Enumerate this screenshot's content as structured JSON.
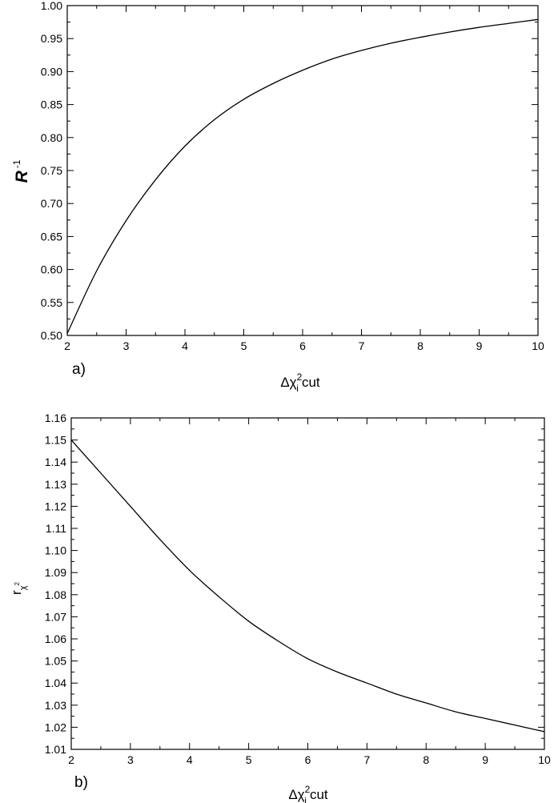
{
  "chart_data": [
    {
      "type": "line",
      "panel_label": "a)",
      "xlabel": {
        "main": "Δχ",
        "sup": "2",
        "sub": "i",
        "suffix": "cut"
      },
      "ylabel": {
        "main": "R",
        "sup": "-1"
      },
      "xlim": [
        2,
        10
      ],
      "ylim": [
        0.5,
        1.0
      ],
      "xticks": [
        2,
        3,
        4,
        5,
        6,
        7,
        8,
        9,
        10
      ],
      "xtick_labels": [
        "2",
        "3",
        "4",
        "5",
        "6",
        "7",
        "8",
        "9",
        "10"
      ],
      "yticks": [
        0.5,
        0.55,
        0.6,
        0.65,
        0.7,
        0.75,
        0.8,
        0.85,
        0.9,
        0.95,
        1.0
      ],
      "ytick_labels": [
        "0.50",
        "0.55",
        "0.60",
        "0.65",
        "0.70",
        "0.75",
        "0.80",
        "0.85",
        "0.90",
        "0.95",
        "1.00"
      ],
      "grid": false,
      "series": [
        {
          "x": [
            2,
            2.5,
            3,
            3.5,
            4,
            4.5,
            5,
            5.5,
            6,
            6.5,
            7,
            7.5,
            8,
            8.5,
            9,
            9.5,
            10
          ],
          "y": [
            0.503,
            0.598,
            0.674,
            0.736,
            0.787,
            0.827,
            0.858,
            0.882,
            0.902,
            0.919,
            0.932,
            0.943,
            0.952,
            0.96,
            0.967,
            0.973,
            0.979
          ]
        }
      ]
    },
    {
      "type": "line",
      "panel_label": "b)",
      "xlabel": {
        "main": "Δχ",
        "sup": "2",
        "sub": "i",
        "suffix": "cut"
      },
      "ylabel": {
        "main": "r",
        "sub": "χ",
        "subsup": "2"
      },
      "xlim": [
        2,
        10
      ],
      "ylim": [
        1.01,
        1.16
      ],
      "xticks": [
        2,
        3,
        4,
        5,
        6,
        7,
        8,
        9,
        10
      ],
      "xtick_labels": [
        "2",
        "3",
        "4",
        "5",
        "6",
        "7",
        "8",
        "9",
        "10"
      ],
      "yticks": [
        1.01,
        1.02,
        1.03,
        1.04,
        1.05,
        1.06,
        1.07,
        1.08,
        1.09,
        1.1,
        1.11,
        1.12,
        1.13,
        1.14,
        1.15,
        1.16
      ],
      "ytick_labels": [
        "1.01",
        "1.02",
        "1.03",
        "1.04",
        "1.05",
        "1.06",
        "1.07",
        "1.08",
        "1.09",
        "1.10",
        "1.11",
        "1.12",
        "1.13",
        "1.14",
        "1.15",
        "1.16"
      ],
      "grid": false,
      "series": [
        {
          "x": [
            2,
            2.5,
            3,
            3.5,
            4,
            4.5,
            5,
            5.5,
            6,
            6.5,
            7,
            7.5,
            8,
            8.5,
            9,
            9.5,
            10
          ],
          "y": [
            1.15,
            1.135,
            1.12,
            1.105,
            1.091,
            1.079,
            1.068,
            1.059,
            1.051,
            1.045,
            1.04,
            1.035,
            1.031,
            1.027,
            1.024,
            1.021,
            1.018
          ]
        }
      ]
    }
  ]
}
